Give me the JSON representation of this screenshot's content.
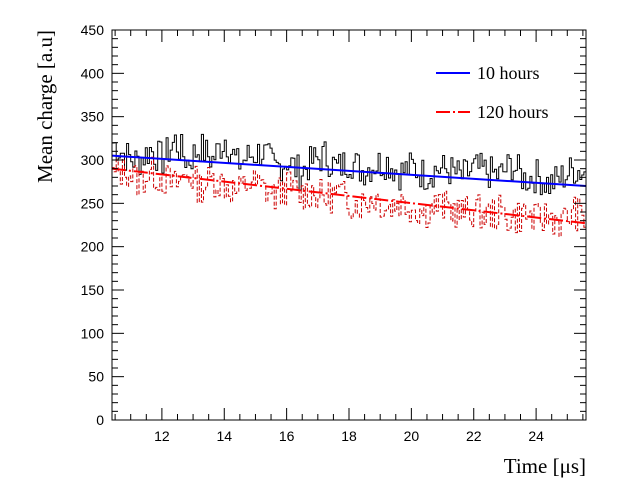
{
  "chart_data": {
    "type": "line",
    "title": "",
    "xlabel": "Time [μs]",
    "ylabel": "Mean charge [a.u]",
    "xlim": [
      10.4,
      25.6
    ],
    "ylim": [
      0,
      450
    ],
    "x_ticks": [
      12,
      14,
      16,
      18,
      20,
      22,
      24
    ],
    "y_ticks": [
      0,
      50,
      100,
      150,
      200,
      250,
      300,
      350,
      400,
      450
    ],
    "grid": false,
    "legend_position": "top-right",
    "series": [
      {
        "name": "10 hours",
        "color": "#0000ff",
        "histogram_color": "#000000",
        "fit": {
          "x": [
            10.4,
            25.6
          ],
          "y": [
            305,
            270
          ],
          "style": "solid"
        },
        "histogram": {
          "x": [
            10.4,
            10.8,
            11.2,
            11.6,
            12.0,
            12.4,
            12.8,
            13.2,
            13.6,
            14.0,
            14.4,
            14.8,
            15.2,
            15.6,
            16.0,
            16.4,
            16.8,
            17.2,
            17.6,
            18.0,
            18.4,
            18.8,
            19.2,
            19.6,
            20.0,
            20.4,
            20.8,
            21.2,
            21.6,
            22.0,
            22.4,
            22.8,
            23.2,
            23.6,
            24.0,
            24.4,
            24.8,
            25.2,
            25.6
          ],
          "y": [
            320,
            305,
            298,
            312,
            300,
            322,
            298,
            315,
            300,
            325,
            295,
            305,
            310,
            290,
            300,
            285,
            298,
            305,
            290,
            300,
            288,
            295,
            298,
            285,
            292,
            283,
            290,
            288,
            280,
            290,
            286,
            282,
            295,
            278,
            282,
            272,
            280,
            290,
            285
          ]
        }
      },
      {
        "name": "120 hours",
        "color": "#ff0000",
        "histogram_color": "#cc0000",
        "fit": {
          "x": [
            10.4,
            25.6
          ],
          "y": [
            290,
            227
          ],
          "style": "dashed"
        },
        "histogram": {
          "x": [
            10.4,
            10.8,
            11.2,
            11.6,
            12.0,
            12.4,
            12.8,
            13.2,
            13.6,
            14.0,
            14.4,
            14.8,
            15.2,
            15.6,
            16.0,
            16.4,
            16.8,
            17.2,
            17.6,
            18.0,
            18.4,
            18.8,
            19.2,
            19.6,
            20.0,
            20.4,
            20.8,
            21.2,
            21.6,
            22.0,
            22.4,
            22.8,
            23.2,
            23.6,
            24.0,
            24.4,
            24.8,
            25.2,
            25.6
          ],
          "y": [
            282,
            290,
            276,
            285,
            280,
            270,
            285,
            268,
            278,
            272,
            262,
            275,
            268,
            258,
            270,
            260,
            264,
            255,
            262,
            252,
            250,
            258,
            245,
            252,
            246,
            240,
            248,
            244,
            238,
            242,
            236,
            240,
            232,
            238,
            230,
            236,
            228,
            240,
            230
          ]
        }
      }
    ]
  }
}
